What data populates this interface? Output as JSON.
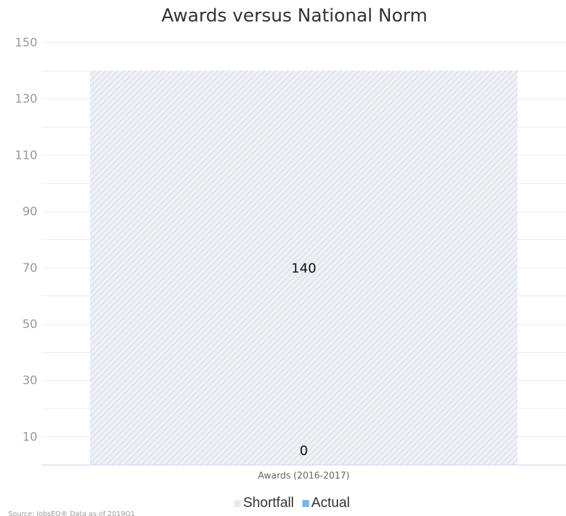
{
  "chart_data": {
    "type": "bar",
    "stacked": true,
    "title": "Awards versus National Norm",
    "categories": [
      "Awards (2016-2017)"
    ],
    "series": [
      {
        "name": "Shortfall",
        "values": [
          140
        ],
        "color": "#d6dde8",
        "pattern": "diagonal-hatch"
      },
      {
        "name": "Actual",
        "values": [
          0
        ],
        "color": "#7cb5ec"
      }
    ],
    "ylim": [
      0,
      150
    ],
    "yticks": [
      10,
      30,
      50,
      70,
      90,
      110,
      130,
      150
    ],
    "grid": true,
    "legend_position": "bottom-center",
    "source": "Source: JobsEQ® Data as of 2019Q1"
  }
}
